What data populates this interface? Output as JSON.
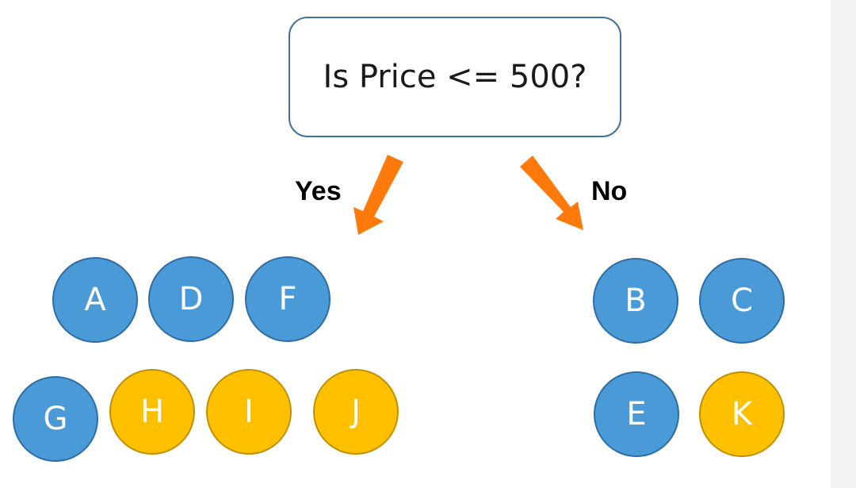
{
  "question": {
    "text": "Is Price <= 500?"
  },
  "branches": {
    "yes_label": "Yes",
    "no_label": "No"
  },
  "colors": {
    "box_border": "#41719c",
    "arrow": "#ff7a0a",
    "node_blue": "#4a9ad8",
    "node_yellow": "#ffc000"
  },
  "yes_group": {
    "row1": [
      {
        "label": "A",
        "color": "blue"
      },
      {
        "label": "D",
        "color": "blue"
      },
      {
        "label": "F",
        "color": "blue"
      }
    ],
    "row2": [
      {
        "label": "G",
        "color": "blue"
      },
      {
        "label": "H",
        "color": "yellow"
      },
      {
        "label": "I",
        "color": "yellow"
      },
      {
        "label": "J",
        "color": "yellow"
      }
    ]
  },
  "no_group": {
    "row1": [
      {
        "label": "B",
        "color": "blue"
      },
      {
        "label": "C",
        "color": "blue"
      }
    ],
    "row2": [
      {
        "label": "E",
        "color": "blue"
      },
      {
        "label": "K",
        "color": "yellow"
      }
    ]
  }
}
